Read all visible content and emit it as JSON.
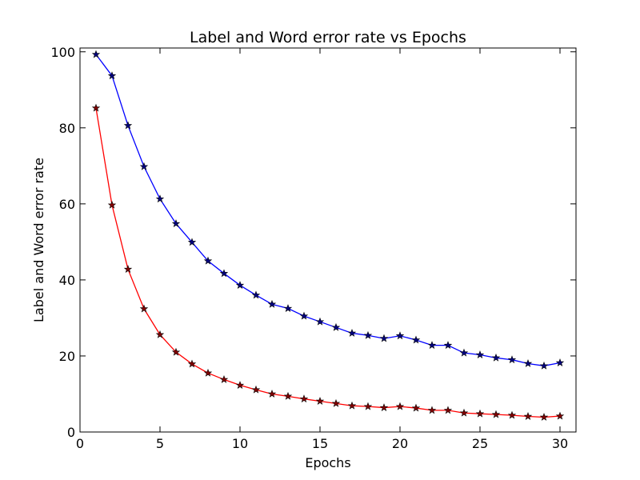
{
  "chart_data": {
    "type": "line",
    "title": "Label and Word error rate vs Epochs",
    "xlabel": "Epochs",
    "ylabel": "Label and Word error rate",
    "xlim": [
      0,
      31
    ],
    "ylim": [
      0,
      101
    ],
    "xticks": [
      0,
      5,
      10,
      15,
      20,
      25,
      30
    ],
    "yticks": [
      0,
      20,
      40,
      60,
      80,
      100
    ],
    "grid": false,
    "marker": "star",
    "x": [
      1,
      2,
      3,
      4,
      5,
      6,
      7,
      8,
      9,
      10,
      11,
      12,
      13,
      14,
      15,
      16,
      17,
      18,
      19,
      20,
      21,
      22,
      23,
      24,
      25,
      26,
      27,
      28,
      29,
      30
    ],
    "series": [
      {
        "color": "#0000ff",
        "marker_fill": "#000080",
        "values": [
          99.3,
          93.7,
          80.6,
          69.8,
          61.3,
          54.8,
          49.9,
          45.0,
          41.7,
          38.6,
          36.0,
          33.6,
          32.5,
          30.5,
          29.0,
          27.5,
          26.0,
          25.4,
          24.6,
          25.3,
          24.2,
          22.8,
          22.8,
          20.8,
          20.3,
          19.5,
          19.0,
          18.0,
          17.4,
          18.2
        ]
      },
      {
        "color": "#ff0000",
        "marker_fill": "#800000",
        "values": [
          85.2,
          59.7,
          42.8,
          32.4,
          25.6,
          21.0,
          17.9,
          15.5,
          13.8,
          12.3,
          11.1,
          10.0,
          9.4,
          8.7,
          8.1,
          7.5,
          6.9,
          6.7,
          6.4,
          6.7,
          6.3,
          5.7,
          5.7,
          5.0,
          4.8,
          4.6,
          4.4,
          4.1,
          3.9,
          4.2
        ]
      }
    ]
  }
}
